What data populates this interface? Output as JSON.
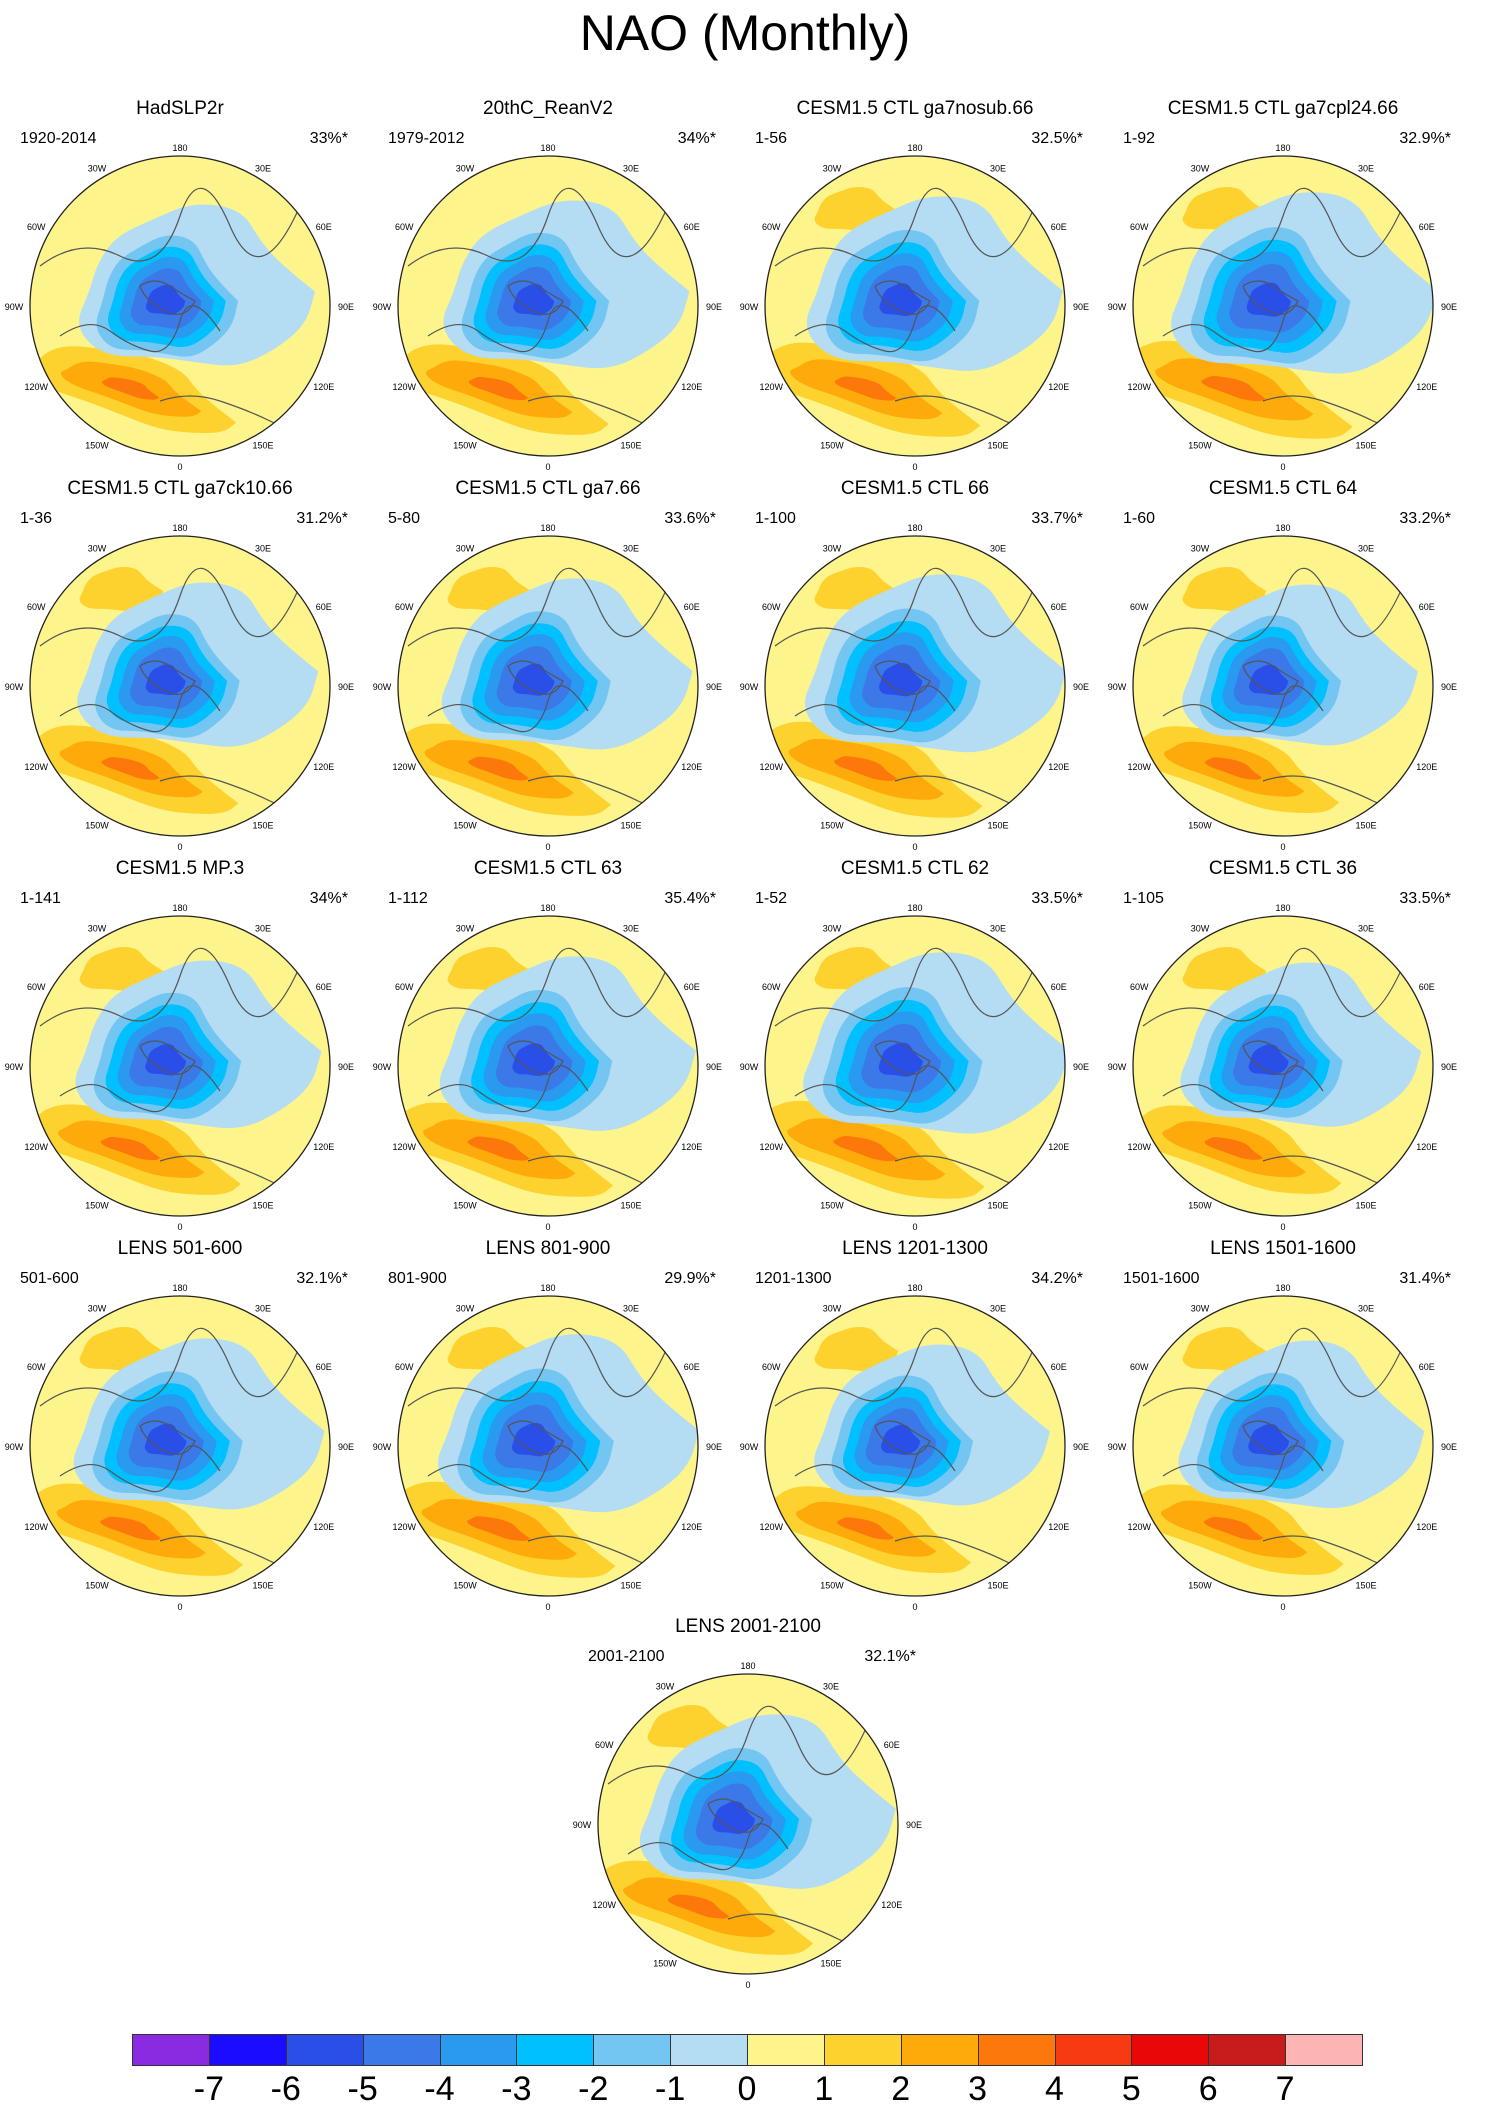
{
  "title": "NAO (Monthly)",
  "panels": [
    {
      "title": "HadSLP2r",
      "years": "1920-2014",
      "pct": "33%*"
    },
    {
      "title": "20thC_ReanV2",
      "years": "1979-2012",
      "pct": "34%*"
    },
    {
      "title": "CESM1.5 CTL ga7nosub.66",
      "years": "1-56",
      "pct": "32.5%*"
    },
    {
      "title": "CESM1.5 CTL ga7cpl24.66",
      "years": "1-92",
      "pct": "32.9%*"
    },
    {
      "title": "CESM1.5 CTL ga7ck10.66",
      "years": "1-36",
      "pct": "31.2%*"
    },
    {
      "title": "CESM1.5 CTL ga7.66",
      "years": "5-80",
      "pct": "33.6%*"
    },
    {
      "title": "CESM1.5 CTL 66",
      "years": "1-100",
      "pct": "33.7%*"
    },
    {
      "title": "CESM1.5 CTL 64",
      "years": "1-60",
      "pct": "33.2%*"
    },
    {
      "title": "CESM1.5 MP.3",
      "years": "1-141",
      "pct": "34%*"
    },
    {
      "title": "CESM1.5 CTL 63",
      "years": "1-112",
      "pct": "35.4%*"
    },
    {
      "title": "CESM1.5 CTL 62",
      "years": "1-52",
      "pct": "33.5%*"
    },
    {
      "title": "CESM1.5 CTL 36",
      "years": "1-105",
      "pct": "33.5%*"
    },
    {
      "title": "LENS 501-600",
      "years": "501-600",
      "pct": "32.1%*"
    },
    {
      "title": "LENS 801-900",
      "years": "801-900",
      "pct": "29.9%*"
    },
    {
      "title": "LENS 1201-1300",
      "years": "1201-1300",
      "pct": "34.2%*"
    },
    {
      "title": "LENS 1501-1600",
      "years": "1501-1600",
      "pct": "31.4%*"
    },
    {
      "title": "LENS 2001-2100",
      "years": "2001-2100",
      "pct": "32.1%*"
    }
  ],
  "lon_labels": {
    "top": "180",
    "bottom": "0",
    "left": [
      "150W",
      "120W",
      "90W",
      "60W",
      "30W"
    ],
    "right": [
      "150E",
      "120E",
      "90E",
      "60E",
      "30E"
    ]
  },
  "colorbar": {
    "labels": [
      "-7",
      "-6",
      "-5",
      "-4",
      "-3",
      "-2",
      "-1",
      "0",
      "1",
      "2",
      "3",
      "4",
      "5",
      "6",
      "7"
    ],
    "colors": [
      "#8a2be2",
      "#1a0dff",
      "#2a4ee8",
      "#3b78e8",
      "#2a99f0",
      "#00c0ff",
      "#74c6f2",
      "#b4dcf2",
      "#fdf48c",
      "#fdd22e",
      "#fdaa0a",
      "#fc780a",
      "#f83a12",
      "#e80808",
      "#c81c1c",
      "#fcb4b4"
    ]
  }
}
